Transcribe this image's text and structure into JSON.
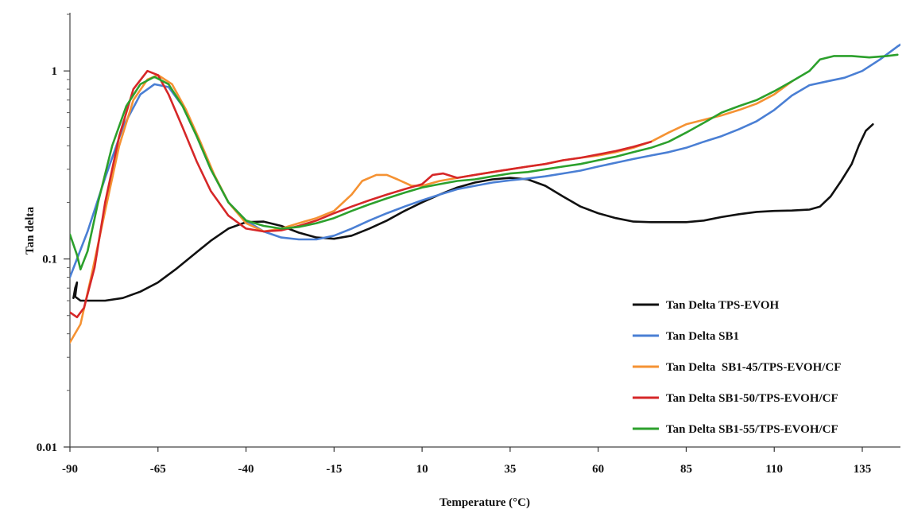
{
  "chart_data": {
    "type": "line",
    "title": "",
    "xlabel": "Temperature (°C)",
    "ylabel": "Tan delta",
    "xlim": [
      -90,
      150
    ],
    "ylim": [
      0.01,
      2
    ],
    "yscale": "log",
    "xticks": [
      -90,
      -65,
      -40,
      -15,
      10,
      35,
      60,
      85,
      110,
      135
    ],
    "yticks": [
      0.01,
      0.1,
      1
    ],
    "ytick_labels": [
      "0.01",
      "0.1",
      "1"
    ],
    "grid": false,
    "legend_position": "bottom-right",
    "series": [
      {
        "name": "Tan Delta TPS-EVOH",
        "color": "#111111",
        "points": [
          [
            -89,
            0.062
          ],
          [
            -88.5,
            0.07
          ],
          [
            -88,
            0.075
          ],
          [
            -88.5,
            0.063
          ],
          [
            -87,
            0.06
          ],
          [
            -80,
            0.06
          ],
          [
            -75,
            0.062
          ],
          [
            -70,
            0.067
          ],
          [
            -65,
            0.075
          ],
          [
            -60,
            0.088
          ],
          [
            -55,
            0.105
          ],
          [
            -50,
            0.125
          ],
          [
            -45,
            0.145
          ],
          [
            -40,
            0.157
          ],
          [
            -35,
            0.158
          ],
          [
            -30,
            0.15
          ],
          [
            -25,
            0.138
          ],
          [
            -20,
            0.13
          ],
          [
            -15,
            0.128
          ],
          [
            -10,
            0.133
          ],
          [
            -5,
            0.145
          ],
          [
            0,
            0.16
          ],
          [
            5,
            0.18
          ],
          [
            10,
            0.2
          ],
          [
            15,
            0.22
          ],
          [
            20,
            0.24
          ],
          [
            25,
            0.255
          ],
          [
            30,
            0.265
          ],
          [
            35,
            0.27
          ],
          [
            40,
            0.265
          ],
          [
            45,
            0.245
          ],
          [
            50,
            0.215
          ],
          [
            55,
            0.19
          ],
          [
            60,
            0.175
          ],
          [
            65,
            0.165
          ],
          [
            70,
            0.158
          ],
          [
            75,
            0.157
          ],
          [
            80,
            0.157
          ],
          [
            85,
            0.157
          ],
          [
            90,
            0.16
          ],
          [
            95,
            0.167
          ],
          [
            100,
            0.173
          ],
          [
            105,
            0.178
          ],
          [
            110,
            0.18
          ],
          [
            115,
            0.181
          ],
          [
            120,
            0.183
          ],
          [
            123,
            0.19
          ],
          [
            126,
            0.215
          ],
          [
            129,
            0.26
          ],
          [
            132,
            0.32
          ],
          [
            134,
            0.4
          ],
          [
            136,
            0.48
          ],
          [
            138,
            0.52
          ]
        ]
      },
      {
        "name": "Tan Delta SB1",
        "color": "#4a7fd4",
        "points": [
          [
            -90,
            0.08
          ],
          [
            -85,
            0.14
          ],
          [
            -80,
            0.27
          ],
          [
            -75,
            0.5
          ],
          [
            -70,
            0.75
          ],
          [
            -66,
            0.85
          ],
          [
            -62,
            0.82
          ],
          [
            -58,
            0.65
          ],
          [
            -54,
            0.45
          ],
          [
            -50,
            0.3
          ],
          [
            -45,
            0.2
          ],
          [
            -40,
            0.16
          ],
          [
            -35,
            0.14
          ],
          [
            -30,
            0.13
          ],
          [
            -25,
            0.127
          ],
          [
            -20,
            0.127
          ],
          [
            -15,
            0.133
          ],
          [
            -10,
            0.145
          ],
          [
            -5,
            0.16
          ],
          [
            0,
            0.175
          ],
          [
            5,
            0.19
          ],
          [
            10,
            0.205
          ],
          [
            15,
            0.22
          ],
          [
            20,
            0.235
          ],
          [
            25,
            0.245
          ],
          [
            30,
            0.255
          ],
          [
            35,
            0.262
          ],
          [
            40,
            0.268
          ],
          [
            45,
            0.275
          ],
          [
            50,
            0.285
          ],
          [
            55,
            0.295
          ],
          [
            60,
            0.31
          ],
          [
            65,
            0.325
          ],
          [
            70,
            0.34
          ],
          [
            75,
            0.355
          ],
          [
            80,
            0.37
          ],
          [
            85,
            0.39
          ],
          [
            90,
            0.42
          ],
          [
            95,
            0.45
          ],
          [
            100,
            0.49
          ],
          [
            105,
            0.54
          ],
          [
            110,
            0.62
          ],
          [
            115,
            0.74
          ],
          [
            120,
            0.84
          ],
          [
            125,
            0.88
          ],
          [
            130,
            0.92
          ],
          [
            135,
            1.0
          ],
          [
            140,
            1.15
          ],
          [
            145,
            1.35
          ],
          [
            150,
            1.55
          ]
        ]
      },
      {
        "name": "Tan Delta  SB1-45/TPS-EVOH/CF",
        "color": "#f59233",
        "points": [
          [
            -90,
            0.036
          ],
          [
            -87,
            0.045
          ],
          [
            -84,
            0.08
          ],
          [
            -80,
            0.18
          ],
          [
            -76,
            0.4
          ],
          [
            -72,
            0.7
          ],
          [
            -68,
            0.9
          ],
          [
            -65,
            0.95
          ],
          [
            -61,
            0.85
          ],
          [
            -57,
            0.62
          ],
          [
            -53,
            0.42
          ],
          [
            -49,
            0.28
          ],
          [
            -45,
            0.2
          ],
          [
            -40,
            0.155
          ],
          [
            -35,
            0.14
          ],
          [
            -30,
            0.145
          ],
          [
            -25,
            0.155
          ],
          [
            -20,
            0.165
          ],
          [
            -15,
            0.18
          ],
          [
            -10,
            0.22
          ],
          [
            -7,
            0.26
          ],
          [
            -3,
            0.28
          ],
          [
            0,
            0.28
          ],
          [
            3,
            0.265
          ],
          [
            7,
            0.245
          ],
          [
            10,
            0.245
          ],
          [
            15,
            0.26
          ],
          [
            20,
            0.27
          ],
          [
            25,
            0.28
          ],
          [
            30,
            0.29
          ],
          [
            35,
            0.3
          ],
          [
            40,
            0.31
          ],
          [
            45,
            0.32
          ],
          [
            50,
            0.335
          ],
          [
            55,
            0.345
          ],
          [
            60,
            0.355
          ],
          [
            65,
            0.37
          ],
          [
            70,
            0.39
          ],
          [
            75,
            0.42
          ],
          [
            80,
            0.47
          ],
          [
            85,
            0.52
          ],
          [
            90,
            0.55
          ],
          [
            95,
            0.58
          ],
          [
            100,
            0.62
          ],
          [
            105,
            0.67
          ],
          [
            110,
            0.75
          ],
          [
            115,
            0.88
          ]
        ]
      },
      {
        "name": "Tan Delta SB1-50/TPS-EVOH/CF",
        "color": "#d62728",
        "points": [
          [
            -90,
            0.052
          ],
          [
            -88,
            0.049
          ],
          [
            -86,
            0.055
          ],
          [
            -83,
            0.09
          ],
          [
            -80,
            0.2
          ],
          [
            -76,
            0.45
          ],
          [
            -72,
            0.8
          ],
          [
            -68,
            1.0
          ],
          [
            -65,
            0.95
          ],
          [
            -62,
            0.75
          ],
          [
            -58,
            0.5
          ],
          [
            -54,
            0.33
          ],
          [
            -50,
            0.23
          ],
          [
            -45,
            0.17
          ],
          [
            -40,
            0.145
          ],
          [
            -35,
            0.14
          ],
          [
            -30,
            0.142
          ],
          [
            -25,
            0.15
          ],
          [
            -20,
            0.16
          ],
          [
            -15,
            0.175
          ],
          [
            -10,
            0.19
          ],
          [
            -5,
            0.205
          ],
          [
            0,
            0.22
          ],
          [
            5,
            0.235
          ],
          [
            10,
            0.25
          ],
          [
            13,
            0.28
          ],
          [
            16,
            0.285
          ],
          [
            20,
            0.27
          ],
          [
            25,
            0.28
          ],
          [
            30,
            0.29
          ],
          [
            35,
            0.3
          ],
          [
            40,
            0.31
          ],
          [
            45,
            0.32
          ],
          [
            50,
            0.335
          ],
          [
            55,
            0.345
          ],
          [
            60,
            0.36
          ],
          [
            65,
            0.375
          ],
          [
            70,
            0.395
          ],
          [
            75,
            0.42
          ]
        ]
      },
      {
        "name": "Tan Delta SB1-55/TPS-EVOH/CF",
        "color": "#2ca02c",
        "points": [
          [
            -90,
            0.135
          ],
          [
            -88,
            0.105
          ],
          [
            -87,
            0.088
          ],
          [
            -85,
            0.11
          ],
          [
            -82,
            0.2
          ],
          [
            -78,
            0.4
          ],
          [
            -74,
            0.65
          ],
          [
            -70,
            0.85
          ],
          [
            -66,
            0.93
          ],
          [
            -62,
            0.85
          ],
          [
            -58,
            0.65
          ],
          [
            -54,
            0.45
          ],
          [
            -50,
            0.3
          ],
          [
            -45,
            0.2
          ],
          [
            -40,
            0.16
          ],
          [
            -35,
            0.15
          ],
          [
            -30,
            0.145
          ],
          [
            -25,
            0.148
          ],
          [
            -20,
            0.155
          ],
          [
            -15,
            0.165
          ],
          [
            -10,
            0.18
          ],
          [
            -5,
            0.195
          ],
          [
            0,
            0.21
          ],
          [
            5,
            0.225
          ],
          [
            10,
            0.24
          ],
          [
            15,
            0.25
          ],
          [
            20,
            0.26
          ],
          [
            25,
            0.265
          ],
          [
            30,
            0.275
          ],
          [
            35,
            0.285
          ],
          [
            40,
            0.29
          ],
          [
            45,
            0.3
          ],
          [
            50,
            0.31
          ],
          [
            55,
            0.32
          ],
          [
            60,
            0.335
          ],
          [
            65,
            0.35
          ],
          [
            70,
            0.37
          ],
          [
            75,
            0.39
          ],
          [
            80,
            0.42
          ],
          [
            85,
            0.47
          ],
          [
            90,
            0.53
          ],
          [
            95,
            0.6
          ],
          [
            100,
            0.65
          ],
          [
            105,
            0.7
          ],
          [
            110,
            0.78
          ],
          [
            115,
            0.88
          ],
          [
            120,
            1.0
          ],
          [
            123,
            1.15
          ],
          [
            127,
            1.2
          ],
          [
            132,
            1.2
          ],
          [
            137,
            1.18
          ],
          [
            142,
            1.2
          ],
          [
            145,
            1.22
          ]
        ]
      }
    ]
  }
}
